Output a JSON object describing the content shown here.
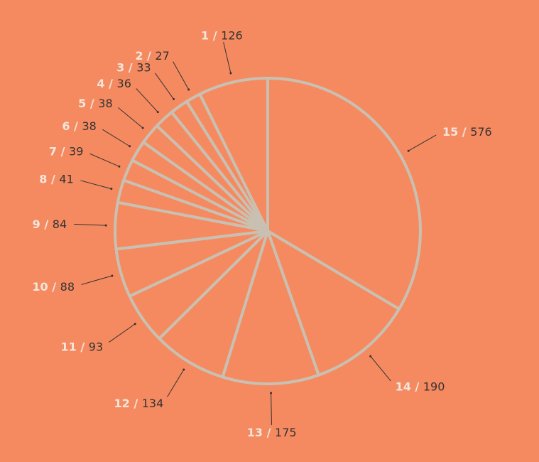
{
  "colors": {
    "background": "#f58a60",
    "slice_fill": "#f58a60",
    "slice_stroke": "#c9c0b2",
    "label_index": "#f2e6dc",
    "label_value": "#333333",
    "leader_line": "#333333"
  },
  "chart_data": {
    "type": "pie",
    "title": "",
    "label_separator": "/",
    "categories": [
      "1",
      "2",
      "3",
      "4",
      "5",
      "6",
      "7",
      "8",
      "9",
      "10",
      "11",
      "12",
      "13",
      "14",
      "15"
    ],
    "values": [
      126,
      27,
      33,
      36,
      38,
      38,
      39,
      41,
      84,
      88,
      93,
      134,
      175,
      190,
      576
    ],
    "legend": "none"
  }
}
